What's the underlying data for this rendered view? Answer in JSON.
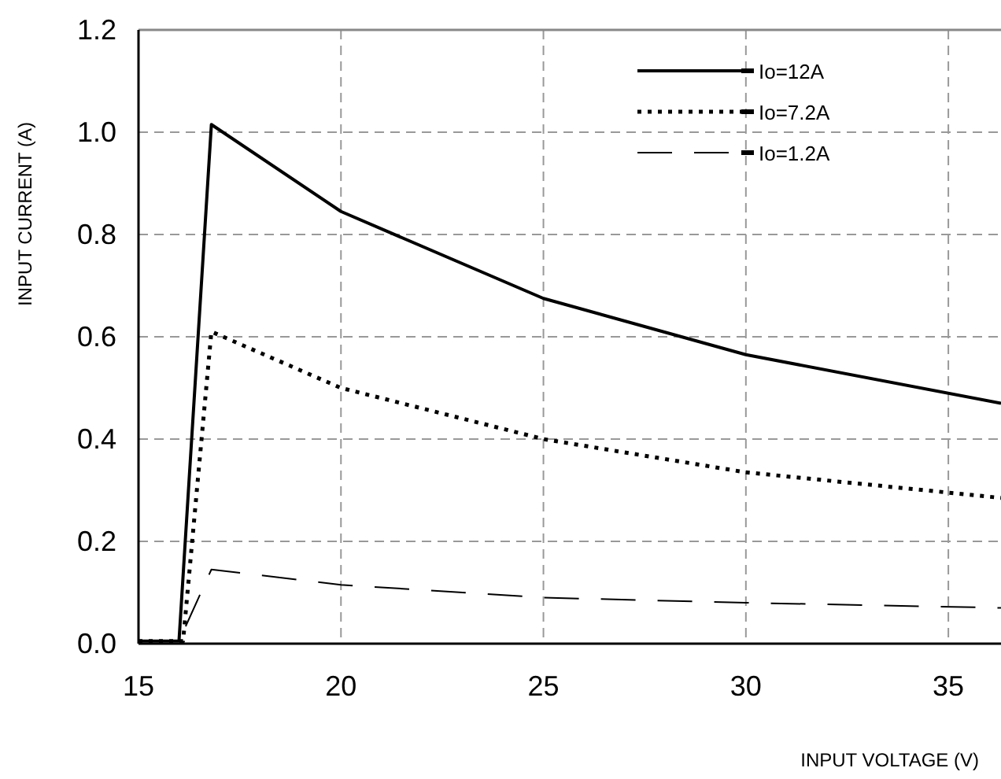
{
  "chart_data": {
    "type": "line",
    "xlabel": "INPUT VOLTAGE (V)",
    "ylabel": "INPUT CURRENT (A)",
    "xlim": [
      15,
      36.3
    ],
    "xticks": [
      15,
      20,
      25,
      30,
      35
    ],
    "ylim": [
      0,
      1.2
    ],
    "yticks": [
      {
        "value": 0,
        "label": "0.0"
      },
      {
        "value": 0.2,
        "label": "0.2"
      },
      {
        "value": 0.4,
        "label": "0.4"
      },
      {
        "value": 0.6,
        "label": "0.6"
      },
      {
        "value": 0.8,
        "label": "0.8"
      },
      {
        "value": 1,
        "label": "1.0"
      },
      {
        "value": 1.2,
        "label": "1.2"
      }
    ],
    "grid": true,
    "legend": "top right",
    "marker": "none",
    "series": [
      {
        "name": "Io=12A",
        "color": "#000000",
        "line_style": "solid",
        "x": [
          15,
          16,
          16.8,
          20,
          25,
          30,
          36.3
        ],
        "values": [
          0.005,
          0.005,
          1.015,
          0.845,
          0.675,
          0.565,
          0.47
        ]
      },
      {
        "name": "Io=7.2A",
        "color": "#000000",
        "line_style": "dotted",
        "x": [
          15,
          16.1,
          16.8,
          20,
          25,
          30,
          36.3
        ],
        "values": [
          0.005,
          0.005,
          0.61,
          0.5,
          0.4,
          0.335,
          0.285
        ]
      },
      {
        "name": "Io=1.2A",
        "color": "#000000",
        "line_style": "dashed",
        "x": [
          15,
          16,
          16.8,
          20,
          25,
          30,
          36.3
        ],
        "values": [
          0.005,
          0.005,
          0.145,
          0.115,
          0.09,
          0.08,
          0.07
        ]
      }
    ]
  }
}
